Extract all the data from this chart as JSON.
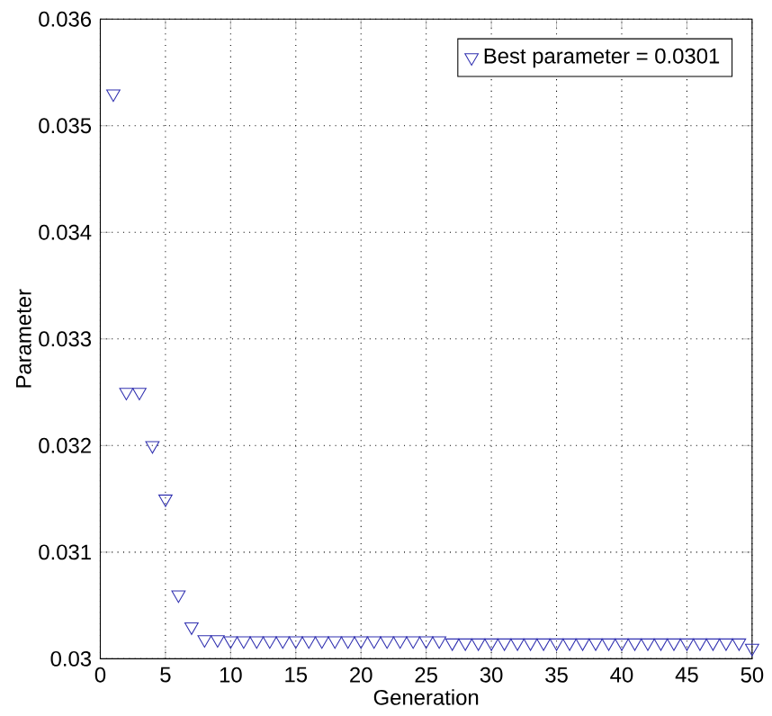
{
  "chart_data": {
    "type": "scatter",
    "xlabel": "Generation",
    "ylabel": "Parameter",
    "x": [
      1,
      2,
      3,
      4,
      5,
      6,
      7,
      8,
      9,
      10,
      11,
      12,
      13,
      14,
      15,
      16,
      17,
      18,
      19,
      20,
      21,
      22,
      23,
      24,
      25,
      26,
      27,
      28,
      29,
      30,
      31,
      32,
      33,
      34,
      35,
      36,
      37,
      38,
      39,
      40,
      41,
      42,
      43,
      44,
      45,
      46,
      47,
      48,
      49,
      50
    ],
    "series": [
      {
        "name": "Best parameter = 0.0301",
        "color": "#3030b0",
        "values": [
          0.0353,
          0.0325,
          0.0325,
          0.032,
          0.0315,
          0.0306,
          0.0303,
          0.03018,
          0.03018,
          0.03017,
          0.03017,
          0.03017,
          0.03017,
          0.03017,
          0.03017,
          0.03017,
          0.03017,
          0.03017,
          0.03017,
          0.03017,
          0.03017,
          0.03017,
          0.03017,
          0.03017,
          0.03017,
          0.03017,
          0.03015,
          0.03015,
          0.03015,
          0.03015,
          0.03015,
          0.03015,
          0.03015,
          0.03015,
          0.03015,
          0.03015,
          0.03015,
          0.03015,
          0.03015,
          0.03015,
          0.03015,
          0.03015,
          0.03015,
          0.03015,
          0.03015,
          0.03015,
          0.03015,
          0.03015,
          0.03015,
          0.0301
        ]
      }
    ],
    "xlim": [
      0,
      50
    ],
    "ylim": [
      0.03,
      0.036
    ],
    "xticks": [
      0,
      5,
      10,
      15,
      20,
      25,
      30,
      35,
      40,
      45,
      50
    ],
    "yticks": [
      0.03,
      0.031,
      0.032,
      0.033,
      0.034,
      0.035,
      0.036
    ],
    "grid": true,
    "legend": "top right",
    "marker": "triangle"
  }
}
